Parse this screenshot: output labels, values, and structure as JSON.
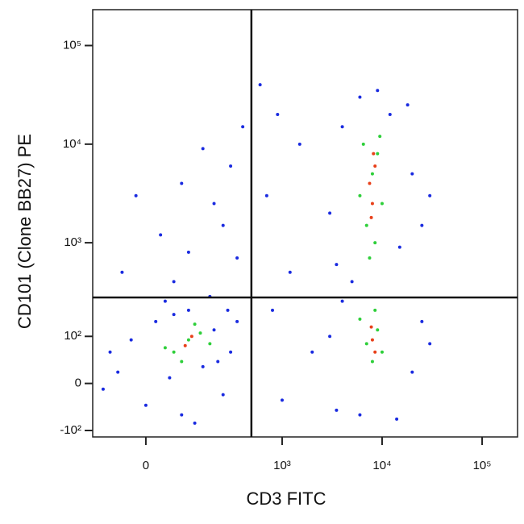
{
  "chart_data": {
    "type": "scatter",
    "xlabel": "CD3 FITC",
    "ylabel": "CD101 (Clone BB27) PE",
    "xscale": "biexponential",
    "yscale": "biexponential",
    "xlim": [
      -135,
      226000
    ],
    "ylim": [
      -120,
      231000
    ],
    "xticks": [
      0,
      {
        "value": 1000,
        "label": "10³"
      },
      {
        "value": 10000,
        "label": "10⁴"
      },
      {
        "value": 100000,
        "label": "10⁵"
      }
    ],
    "yticks": [
      {
        "value": -100,
        "label": "-10²"
      },
      0,
      {
        "value": 100,
        "label": "10²"
      },
      {
        "value": 1000,
        "label": "10³"
      },
      {
        "value": 10000,
        "label": "10⁴"
      },
      {
        "value": 100000,
        "label": "10⁵"
      }
    ],
    "gates": {
      "x": 490,
      "y": 274
    },
    "series": [
      {
        "color": "#1a2be0",
        "x": [
          -60,
          -30,
          0,
          20,
          50,
          80,
          100,
          150,
          200,
          250,
          300,
          -80,
          40,
          180,
          350,
          120,
          60,
          220,
          -100,
          280,
          -50,
          30,
          100,
          200,
          60,
          300,
          150,
          400,
          -20,
          250,
          80,
          350,
          3000,
          4000,
          6000,
          12000,
          20000,
          25000,
          3500,
          18000,
          15000,
          5000,
          9000,
          30000,
          3000,
          3500,
          25000,
          20000,
          4000,
          30000,
          14000,
          6000,
          700,
          1200,
          1500,
          800,
          2000,
          1000,
          600,
          900
        ],
        "y": [
          20,
          90,
          -40,
          150,
          10,
          -60,
          200,
          30,
          120,
          -20,
          60,
          60,
          250,
          280,
          150,
          -80,
          180,
          40,
          -10,
          200,
          500,
          1200,
          800,
          2500,
          400,
          6000,
          9000,
          15000,
          3000,
          1500,
          4000,
          700,
          2000,
          15000,
          30000,
          20000,
          5000,
          1500,
          600,
          25000,
          900,
          400,
          35000,
          3000,
          100,
          -50,
          150,
          20,
          250,
          80,
          -70,
          -60,
          3000,
          500,
          10000,
          200,
          60,
          -30,
          40000,
          20000
        ]
      },
      {
        "color": "#2ecf3a",
        "x": [
          60,
          100,
          140,
          80,
          180,
          40,
          120,
          6000,
          8000,
          7000,
          9000,
          8500,
          6500,
          10000,
          7500,
          9500,
          7000,
          9000,
          8000,
          6000,
          10000,
          8500
        ],
        "y": [
          60,
          90,
          110,
          40,
          80,
          70,
          140,
          3000,
          5000,
          1500,
          8000,
          1000,
          10000,
          2500,
          700,
          12000,
          80,
          120,
          40,
          160,
          60,
          200
        ]
      },
      {
        "color": "#e8401a",
        "x": [
          90,
          110,
          7500,
          8000,
          8500,
          7800,
          8200,
          8000,
          8500,
          7800
        ],
        "y": [
          75,
          100,
          4000,
          2500,
          6000,
          1800,
          8000,
          90,
          60,
          130
        ]
      }
    ]
  }
}
